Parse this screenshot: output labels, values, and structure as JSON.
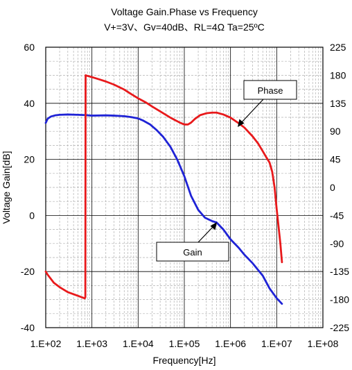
{
  "chart_data": {
    "type": "line",
    "title": "Voltage Gain.Phase vs Frequency",
    "subtitle": "V+=3V、Gv=40dB、RL=4Ω Ta=25ºC",
    "xlabel": "Frequency[Hz]",
    "ylabel": "Voltage Gain[dB]",
    "x_scale": "log",
    "xlim": [
      100,
      100000000
    ],
    "ylim": [
      -40,
      60
    ],
    "y2lim": [
      -225,
      225
    ],
    "grid": true,
    "x_ticks": [
      "1.E+02",
      "1.E+03",
      "1.E+04",
      "1.E+05",
      "1.E+06",
      "1.E+07",
      "1.E+08"
    ],
    "y_ticks": [
      "60",
      "40",
      "20",
      "0",
      "-20",
      "-40"
    ],
    "y2_ticks": [
      "225",
      "180",
      "135",
      "90",
      "45",
      "0",
      "-45",
      "-90",
      "-135",
      "-180",
      "-225"
    ],
    "series": [
      {
        "name": "Gain",
        "axis": "left",
        "color": "#1f23d6",
        "points": [
          [
            100,
            33
          ],
          [
            110,
            34.5
          ],
          [
            130,
            35.3
          ],
          [
            160,
            35.7
          ],
          [
            200,
            35.9
          ],
          [
            300,
            36
          ],
          [
            500,
            35.9
          ],
          [
            700,
            35.8
          ],
          [
            1000,
            35.6
          ],
          [
            2000,
            35.7
          ],
          [
            3000,
            35.6
          ],
          [
            5000,
            35.4
          ],
          [
            7000,
            35.1
          ],
          [
            10000,
            34.6
          ],
          [
            13000,
            33.8
          ],
          [
            18000,
            32.5
          ],
          [
            25000,
            30.5
          ],
          [
            35000,
            28
          ],
          [
            50000,
            24.5
          ],
          [
            70000,
            20
          ],
          [
            100000,
            14
          ],
          [
            140000,
            7
          ],
          [
            200000,
            2
          ],
          [
            280000,
            -0.8
          ],
          [
            400000,
            -2
          ],
          [
            500000,
            -2.5
          ],
          [
            700000,
            -5
          ],
          [
            1000000,
            -8.5
          ],
          [
            1500000,
            -11.5
          ],
          [
            2000000,
            -14
          ],
          [
            3000000,
            -17
          ],
          [
            5000000,
            -21.5
          ],
          [
            7000000,
            -26
          ],
          [
            10000000,
            -29.5
          ],
          [
            13000000,
            -31.5
          ]
        ]
      },
      {
        "name": "Phase",
        "axis": "right",
        "color": "#e8191b",
        "points": [
          [
            100,
            -135
          ],
          [
            110,
            -140
          ],
          [
            150,
            -153
          ],
          [
            200,
            -160
          ],
          [
            300,
            -168
          ],
          [
            500,
            -174
          ],
          [
            700,
            -178
          ],
          [
            720,
            -176
          ],
          [
            730,
            180
          ],
          [
            800,
            179
          ],
          [
            1000,
            177
          ],
          [
            1500,
            173
          ],
          [
            2000,
            170
          ],
          [
            3000,
            165
          ],
          [
            5000,
            157
          ],
          [
            7000,
            150
          ],
          [
            10000,
            143
          ],
          [
            15000,
            136
          ],
          [
            20000,
            130
          ],
          [
            30000,
            122
          ],
          [
            50000,
            112
          ],
          [
            80000,
            104
          ],
          [
            100000,
            101
          ],
          [
            120000,
            101
          ],
          [
            140000,
            104
          ],
          [
            170000,
            110
          ],
          [
            220000,
            116
          ],
          [
            300000,
            119
          ],
          [
            400000,
            120
          ],
          [
            500000,
            120
          ],
          [
            700000,
            117
          ],
          [
            1000000,
            112
          ],
          [
            1500000,
            103
          ],
          [
            2000000,
            96
          ],
          [
            3000000,
            82
          ],
          [
            4000000,
            70
          ],
          [
            5000000,
            58
          ],
          [
            6000000,
            48
          ],
          [
            7000000,
            40
          ],
          [
            8000000,
            25
          ],
          [
            9000000,
            0
          ],
          [
            10000000,
            -35
          ],
          [
            12000000,
            -90
          ],
          [
            13000000,
            -120
          ]
        ]
      }
    ],
    "annotations": [
      {
        "text": "Phase",
        "target_series": "Phase"
      },
      {
        "text": "Gain",
        "target_series": "Gain"
      }
    ]
  }
}
